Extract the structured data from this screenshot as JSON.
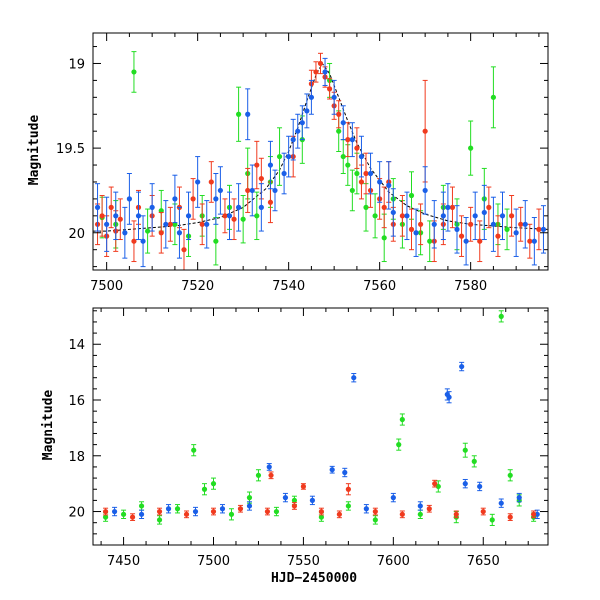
{
  "colors": {
    "green": "#22dd22",
    "red": "#f03a1e",
    "blue": "#1a5fe8",
    "model": "#000000"
  },
  "chart_data": [
    {
      "type": "scatter",
      "xlabel": "",
      "ylabel": "Magnitude",
      "xlim": [
        7497,
        7597
      ],
      "ylim": [
        20.22,
        18.82
      ],
      "y_inverted": true,
      "xticks": [
        7500,
        7520,
        7540,
        7560,
        7580
      ],
      "yticks": [
        19,
        19.5,
        20
      ],
      "ytick_labels": [
        "19",
        "19.5",
        "20"
      ],
      "model_curve": {
        "baseline": 19.97,
        "peak": 19.0,
        "t0": 7547.4,
        "tE": 6.0,
        "x": [
          7497,
          7500,
          7505,
          7510,
          7515,
          7520,
          7525,
          7530,
          7535,
          7538,
          7540,
          7542,
          7544,
          7546,
          7547.4,
          7549,
          7551,
          7553,
          7555,
          7558,
          7562,
          7566,
          7570,
          7575,
          7580,
          7585,
          7590,
          7597
        ],
        "y": [
          19.99,
          19.99,
          19.98,
          19.97,
          19.96,
          19.94,
          19.91,
          19.85,
          19.74,
          19.63,
          19.52,
          19.38,
          19.22,
          19.07,
          19.0,
          19.06,
          19.2,
          19.34,
          19.47,
          19.62,
          19.76,
          19.84,
          19.89,
          19.93,
          19.95,
          19.96,
          19.97,
          19.98
        ]
      },
      "series": [
        {
          "color": "green",
          "x": [
            7499,
            7502,
            7506,
            7509,
            7512,
            7515,
            7518,
            7521,
            7524,
            7527,
            7529,
            7530,
            7531,
            7533,
            7536,
            7538,
            7543,
            7549,
            7551,
            7552,
            7553,
            7554,
            7555,
            7557,
            7559,
            7561,
            7563,
            7565,
            7567,
            7569,
            7571,
            7574,
            7577,
            7580,
            7583,
            7585,
            7586,
            7588
          ],
          "y": [
            19.91,
            19.95,
            19.05,
            19.99,
            19.87,
            19.95,
            20.02,
            19.9,
            20.05,
            19.85,
            19.3,
            19.92,
            19.65,
            19.9,
            19.7,
            19.55,
            19.45,
            19.1,
            19.4,
            19.55,
            19.6,
            19.75,
            19.65,
            19.85,
            19.9,
            20.03,
            19.8,
            19.95,
            19.78,
            20.0,
            20.05,
            19.85,
            19.95,
            19.5,
            19.8,
            19.2,
            19.95,
            19.98
          ],
          "err": [
            0.12,
            0.14,
            0.12,
            0.13,
            0.12,
            0.12,
            0.12,
            0.12,
            0.14,
            0.13,
            0.16,
            0.14,
            0.15,
            0.14,
            0.15,
            0.17,
            0.14,
            0.1,
            0.12,
            0.1,
            0.12,
            0.12,
            0.12,
            0.14,
            0.13,
            0.14,
            0.12,
            0.14,
            0.14,
            0.13,
            0.12,
            0.13,
            0.15,
            0.16,
            0.18,
            0.18,
            0.12,
            0.12
          ]
        },
        {
          "color": "red",
          "x": [
            7498,
            7499,
            7500,
            7501,
            7502,
            7503,
            7506,
            7507,
            7510,
            7512,
            7514,
            7516,
            7517,
            7519,
            7521,
            7523,
            7526,
            7528,
            7531,
            7533,
            7534,
            7536,
            7541,
            7545,
            7546,
            7547,
            7548,
            7549,
            7550,
            7551,
            7553,
            7555,
            7556,
            7557,
            7558,
            7560,
            7561,
            7562,
            7563,
            7565,
            7567,
            7569,
            7570,
            7572,
            7574,
            7576,
            7578,
            7580,
            7582,
            7584,
            7586,
            7589,
            7591,
            7593,
            7595
          ],
          "y": [
            19.95,
            19.9,
            20.02,
            19.85,
            19.99,
            19.92,
            20.05,
            19.85,
            19.9,
            20.0,
            19.95,
            19.85,
            20.1,
            19.8,
            19.95,
            19.7,
            19.9,
            19.92,
            19.75,
            19.6,
            19.68,
            19.82,
            19.55,
            19.12,
            19.05,
            19.0,
            19.08,
            19.15,
            19.25,
            19.3,
            19.45,
            19.5,
            19.7,
            19.65,
            19.75,
            19.8,
            19.85,
            19.7,
            19.95,
            19.9,
            19.98,
            19.95,
            19.4,
            20.05,
            19.95,
            19.85,
            20.02,
            19.95,
            20.05,
            19.85,
            20.02,
            19.9,
            19.95,
            20.05,
            19.98
          ],
          "err": [
            0.12,
            0.12,
            0.12,
            0.12,
            0.12,
            0.12,
            0.12,
            0.1,
            0.12,
            0.12,
            0.1,
            0.12,
            0.12,
            0.12,
            0.12,
            0.12,
            0.1,
            0.12,
            0.13,
            0.14,
            0.12,
            0.12,
            0.12,
            0.08,
            0.06,
            0.06,
            0.06,
            0.06,
            0.08,
            0.08,
            0.1,
            0.12,
            0.1,
            0.12,
            0.1,
            0.12,
            0.12,
            0.12,
            0.1,
            0.12,
            0.12,
            0.12,
            0.3,
            0.12,
            0.12,
            0.12,
            0.12,
            0.1,
            0.12,
            0.12,
            0.12,
            0.12,
            0.1,
            0.1,
            0.12
          ]
        },
        {
          "color": "blue",
          "x": [
            7498,
            7500,
            7502,
            7504,
            7505,
            7507,
            7508,
            7510,
            7513,
            7515,
            7516,
            7518,
            7520,
            7522,
            7524,
            7525,
            7527,
            7529,
            7531,
            7532,
            7534,
            7536,
            7537,
            7539,
            7540,
            7541,
            7542,
            7543,
            7544,
            7545,
            7548,
            7550,
            7552,
            7554,
            7556,
            7558,
            7560,
            7562,
            7563,
            7566,
            7568,
            7570,
            7572,
            7574,
            7575,
            7577,
            7579,
            7581,
            7583,
            7585,
            7587,
            7590,
            7592,
            7594,
            7596
          ],
          "y": [
            19.85,
            19.95,
            19.9,
            20.0,
            19.8,
            19.9,
            20.05,
            19.85,
            19.95,
            19.8,
            20.0,
            19.9,
            19.7,
            19.95,
            19.8,
            19.75,
            19.9,
            19.85,
            19.3,
            19.75,
            19.85,
            19.6,
            19.75,
            19.65,
            19.55,
            19.45,
            19.4,
            19.35,
            19.28,
            19.2,
            19.05,
            19.2,
            19.35,
            19.45,
            19.55,
            19.65,
            19.7,
            19.72,
            19.88,
            19.9,
            20.0,
            19.75,
            19.95,
            19.9,
            19.85,
            19.98,
            20.05,
            19.9,
            19.88,
            19.95,
            19.9,
            20.0,
            19.95,
            20.05,
            19.98
          ],
          "err": [
            0.14,
            0.16,
            0.14,
            0.15,
            0.15,
            0.14,
            0.15,
            0.14,
            0.14,
            0.14,
            0.15,
            0.14,
            0.15,
            0.14,
            0.15,
            0.14,
            0.14,
            0.14,
            0.15,
            0.15,
            0.14,
            0.14,
            0.12,
            0.12,
            0.12,
            0.12,
            0.1,
            0.1,
            0.1,
            0.1,
            0.08,
            0.1,
            0.1,
            0.1,
            0.12,
            0.12,
            0.12,
            0.14,
            0.14,
            0.14,
            0.14,
            0.14,
            0.14,
            0.14,
            0.14,
            0.14,
            0.14,
            0.14,
            0.16,
            0.16,
            0.14,
            0.14,
            0.14,
            0.14,
            0.14
          ]
        }
      ]
    },
    {
      "type": "scatter",
      "xlabel": "HJD−2450000",
      "ylabel": "Magnitude",
      "xlim": [
        7433,
        7686
      ],
      "ylim": [
        21.2,
        12.7
      ],
      "y_inverted": true,
      "xticks": [
        7450,
        7500,
        7550,
        7600,
        7650
      ],
      "yticks": [
        14,
        16,
        18,
        20
      ],
      "ytick_labels": [
        "14",
        "16",
        "18",
        "20"
      ],
      "series": [
        {
          "color": "green",
          "x": [
            7440,
            7450,
            7460,
            7470,
            7480,
            7489,
            7495,
            7500,
            7510,
            7520,
            7525,
            7535,
            7545,
            7560,
            7575,
            7590,
            7603,
            7605,
            7615,
            7625,
            7635,
            7640,
            7645,
            7655,
            7660,
            7665,
            7670,
            7678
          ],
          "y": [
            20.2,
            20.1,
            19.8,
            20.3,
            19.9,
            17.8,
            19.2,
            19.0,
            20.1,
            19.5,
            18.7,
            20.0,
            19.6,
            20.2,
            19.8,
            20.3,
            17.6,
            16.7,
            20.1,
            19.1,
            20.2,
            17.8,
            18.2,
            20.3,
            13.0,
            18.7,
            19.6,
            20.2
          ],
          "err": [
            0.15,
            0.15,
            0.15,
            0.15,
            0.15,
            0.2,
            0.2,
            0.2,
            0.2,
            0.2,
            0.2,
            0.15,
            0.15,
            0.15,
            0.15,
            0.15,
            0.2,
            0.2,
            0.15,
            0.2,
            0.2,
            0.25,
            0.2,
            0.2,
            0.2,
            0.2,
            0.2,
            0.15
          ]
        },
        {
          "color": "blue",
          "x": [
            7445,
            7460,
            7475,
            7490,
            7505,
            7520,
            7531,
            7540,
            7555,
            7566,
            7573,
            7578,
            7585,
            7600,
            7615,
            7630,
            7631,
            7638,
            7640,
            7648,
            7660,
            7670,
            7680
          ],
          "y": [
            20.0,
            20.1,
            19.9,
            20.0,
            19.9,
            19.8,
            18.4,
            19.5,
            19.6,
            18.5,
            18.6,
            15.2,
            19.9,
            19.5,
            19.8,
            15.8,
            15.9,
            14.8,
            19.0,
            19.1,
            19.7,
            19.5,
            20.1
          ],
          "err": [
            0.15,
            0.15,
            0.15,
            0.15,
            0.15,
            0.15,
            0.12,
            0.15,
            0.15,
            0.12,
            0.15,
            0.15,
            0.15,
            0.15,
            0.15,
            0.2,
            0.2,
            0.15,
            0.15,
            0.15,
            0.15,
            0.15,
            0.15
          ]
        },
        {
          "color": "red",
          "x": [
            7440,
            7455,
            7470,
            7485,
            7500,
            7515,
            7530,
            7532,
            7545,
            7550,
            7560,
            7570,
            7575,
            7590,
            7605,
            7620,
            7623,
            7635,
            7650,
            7665,
            7678
          ],
          "y": [
            20.0,
            20.2,
            20.0,
            20.1,
            20.0,
            19.9,
            20.0,
            18.7,
            19.8,
            19.1,
            20.0,
            20.1,
            19.2,
            20.0,
            20.1,
            19.9,
            19.0,
            20.1,
            20.0,
            20.2,
            20.1
          ],
          "err": [
            0.12,
            0.12,
            0.12,
            0.12,
            0.12,
            0.12,
            0.12,
            0.12,
            0.12,
            0.1,
            0.12,
            0.12,
            0.2,
            0.12,
            0.12,
            0.12,
            0.12,
            0.12,
            0.12,
            0.12,
            0.12
          ]
        }
      ]
    }
  ]
}
